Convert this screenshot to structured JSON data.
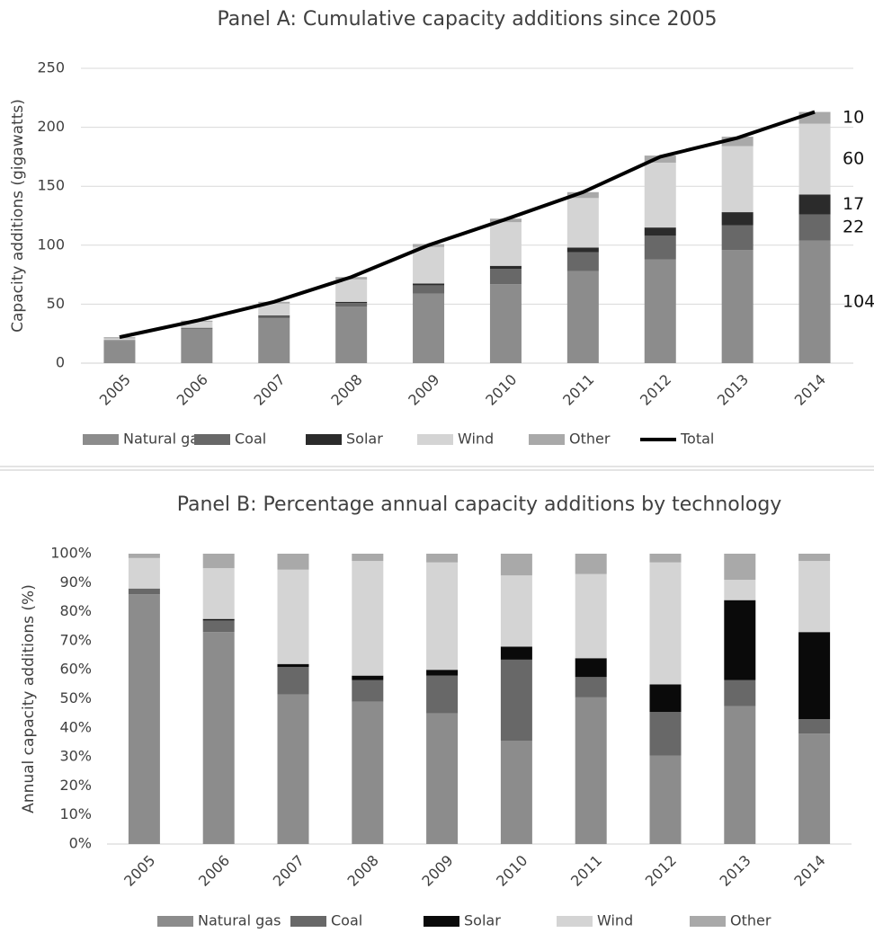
{
  "chart_data": [
    {
      "type": "bar",
      "title": "Panel A: Cumulative capacity additions since 2005",
      "y_label": "Capacity additions (gigawatts)",
      "categories": [
        "2005",
        "2006",
        "2007",
        "2008",
        "2009",
        "2010",
        "2011",
        "2012",
        "2013",
        "2014"
      ],
      "series": [
        {
          "name": "Natural gas",
          "color": "#8c8c8c",
          "values": [
            19,
            29,
            38,
            48,
            59,
            67,
            78,
            88,
            96,
            104
          ]
        },
        {
          "name": "Coal",
          "color": "#686868",
          "values": [
            0.5,
            1,
            2,
            3,
            7,
            13,
            16,
            20,
            21,
            22
          ]
        },
        {
          "name": "Solar",
          "color": "#2b2b2b",
          "values": [
            0,
            0,
            0.5,
            1,
            1.5,
            2.5,
            4,
            7,
            11,
            17
          ]
        },
        {
          "name": "Wind",
          "color": "#d4d4d4",
          "values": [
            1.5,
            5,
            10,
            19,
            31,
            37,
            42,
            55,
            56,
            60
          ]
        },
        {
          "name": "Other",
          "color": "#a9a9a9",
          "values": [
            1,
            1,
            1.5,
            2,
            2.5,
            3,
            5,
            6,
            8,
            10
          ]
        },
        {
          "name": "Total",
          "color": "#000000",
          "type": "line",
          "values": [
            22,
            36,
            52,
            73,
            100,
            122,
            145,
            175,
            191,
            213
          ]
        }
      ],
      "stacked": true,
      "data_labels": "last",
      "ylim": [
        0,
        250
      ],
      "yticks": [
        0,
        50,
        100,
        150,
        200,
        250
      ],
      "grid": true
    },
    {
      "type": "bar",
      "title": "Panel B: Percentage annual capacity additions by technology",
      "y_label": "Annual capacity additions (%)",
      "categories": [
        "2005",
        "2006",
        "2007",
        "2008",
        "2009",
        "2010",
        "2011",
        "2012",
        "2013",
        "2014"
      ],
      "series": [
        {
          "name": "Natural gas",
          "color": "#8c8c8c",
          "values": [
            86,
            73,
            51.5,
            49,
            45,
            35.5,
            50.5,
            30.5,
            47.5,
            38
          ]
        },
        {
          "name": "Coal",
          "color": "#686868",
          "values": [
            2,
            4,
            9.5,
            7.5,
            13,
            28,
            7,
            15,
            9,
            5
          ]
        },
        {
          "name": "Solar",
          "color": "#0a0a0a",
          "values": [
            0,
            0.5,
            1,
            1.5,
            2,
            4.5,
            6.5,
            9.5,
            27.5,
            30
          ]
        },
        {
          "name": "Wind",
          "color": "#d4d4d4",
          "values": [
            10.5,
            17.5,
            32.5,
            39.5,
            37,
            24.5,
            29,
            42,
            7,
            24.5
          ]
        },
        {
          "name": "Other",
          "color": "#a9a9a9",
          "values": [
            1.5,
            5,
            5.5,
            2.5,
            3,
            7.5,
            7,
            3,
            9,
            2.5
          ]
        }
      ],
      "stacked": true,
      "ylim": [
        0,
        100
      ],
      "yticks": [
        {
          "value": 0,
          "label": "0%"
        },
        {
          "value": 10,
          "label": "10%"
        },
        {
          "value": 20,
          "label": "20%"
        },
        {
          "value": 30,
          "label": "30%"
        },
        {
          "value": 40,
          "label": "40%"
        },
        {
          "value": 50,
          "label": "50%"
        },
        {
          "value": 60,
          "label": "60%"
        },
        {
          "value": 70,
          "label": "70%"
        },
        {
          "value": 80,
          "label": "80%"
        },
        {
          "value": 90,
          "label": "90%"
        },
        {
          "value": 100,
          "label": "100%"
        }
      ],
      "grid": false
    }
  ]
}
